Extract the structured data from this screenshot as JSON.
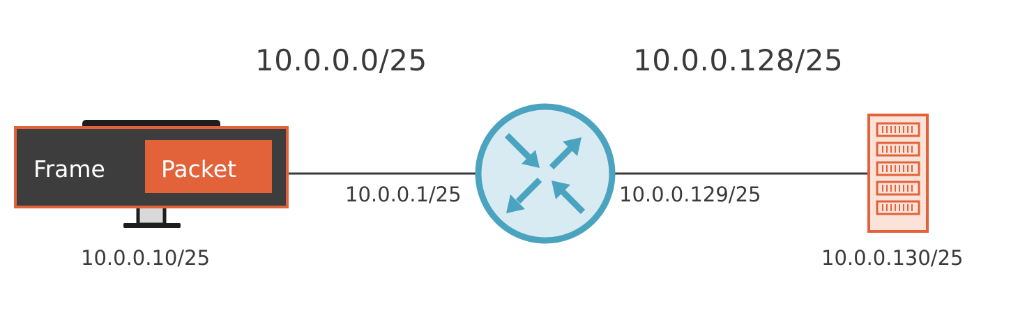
{
  "subnets": {
    "left": "10.0.0.0/25",
    "right": "10.0.0.128/25"
  },
  "host": {
    "ip": "10.0.0.10/25",
    "frame_label": "Frame",
    "packet_label": "Packet"
  },
  "router": {
    "left_ip": "10.0.0.1/25",
    "right_ip": "10.0.0.129/25"
  },
  "server": {
    "ip": "10.0.0.130/25"
  },
  "colors": {
    "orange": "#e2623a",
    "dark": "#3d3d3d",
    "router_fill": "#d8ebf2",
    "router_stroke": "#4aa3bf",
    "text": "#3a3a3a",
    "line": "#3a3a3a"
  },
  "icons": {
    "host": "desktop-monitor-icon",
    "router": "router-icon",
    "server": "server-rack-icon"
  }
}
